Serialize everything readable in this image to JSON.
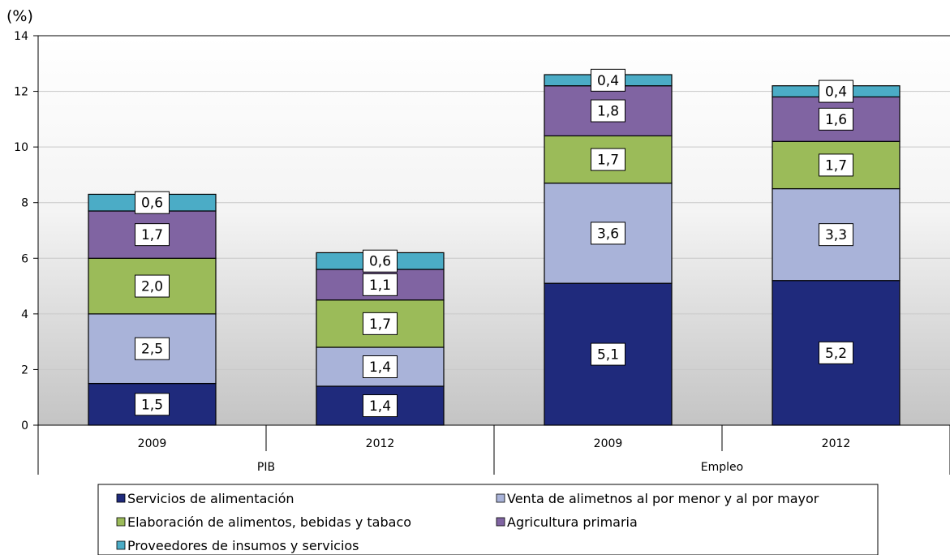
{
  "chart_data": {
    "type": "bar",
    "stacked": true,
    "unit_label": "(%)",
    "ylim": [
      0,
      14
    ],
    "y_ticks": [
      0,
      2,
      4,
      6,
      8,
      10,
      12,
      14
    ],
    "grid": true,
    "legend_position": "bottom",
    "groups": [
      {
        "label": "PIB",
        "categories": [
          "2009",
          "2012"
        ]
      },
      {
        "label": "Empleo",
        "categories": [
          "2009",
          "2012"
        ]
      }
    ],
    "categories": [
      "2009",
      "2012",
      "2009",
      "2012"
    ],
    "series": [
      {
        "name": "Servicios de alimentación",
        "color": "#1f2a7c",
        "values": [
          1.5,
          1.4,
          5.1,
          5.2
        ],
        "labels": [
          "1,5",
          "1,4",
          "5,1",
          "5,2"
        ]
      },
      {
        "name": "Venta de alimetnos al por menor y al por mayor",
        "color": "#a9b3d9",
        "values": [
          2.5,
          1.4,
          3.6,
          3.3
        ],
        "labels": [
          "2,5",
          "1,4",
          "3,6",
          "3,3"
        ]
      },
      {
        "name": "Elaboración de alimentos, bebidas y tabaco",
        "color": "#9bbb59",
        "values": [
          2.0,
          1.7,
          1.7,
          1.7
        ],
        "labels": [
          "2,0",
          "1,7",
          "1,7",
          "1,7"
        ]
      },
      {
        "name": "Agricultura primaria",
        "color": "#8064a2",
        "values": [
          1.7,
          1.1,
          1.8,
          1.6
        ],
        "labels": [
          "1,7",
          "1,1",
          "1,8",
          "1,6"
        ]
      },
      {
        "name": "Proveedores de insumos y servicios",
        "color": "#4bacc6",
        "values": [
          0.6,
          0.6,
          0.4,
          0.4
        ],
        "labels": [
          "0,6",
          "0,6",
          "0,4",
          "0,4"
        ]
      }
    ]
  }
}
